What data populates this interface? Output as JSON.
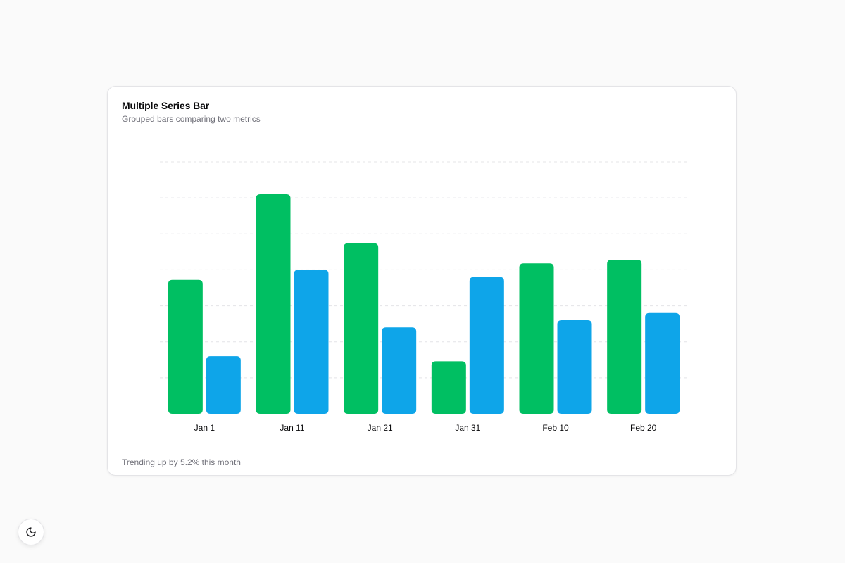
{
  "card": {
    "title": "Multiple Series Bar",
    "subtitle": "Grouped bars comparing two metrics",
    "footer": "Trending up by 5.2% this month"
  },
  "theme_toggle": {
    "icon": "moon-icon"
  },
  "colors": {
    "series_a": "#00bf62",
    "series_b": "#0ea5e9",
    "grid": "#e4e4e7",
    "tick_label": "#09090b"
  },
  "chart_data": {
    "type": "bar",
    "categories": [
      "Jan 1",
      "Jan 11",
      "Jan 21",
      "Jan 31",
      "Feb 10",
      "Feb 20"
    ],
    "series": [
      {
        "values": [
          186,
          305,
          237,
          73,
          209,
          214
        ]
      },
      {
        "values": [
          80,
          200,
          120,
          190,
          130,
          140
        ]
      }
    ],
    "ylim": [
      0,
      350
    ],
    "grid": true,
    "legend": "none"
  }
}
